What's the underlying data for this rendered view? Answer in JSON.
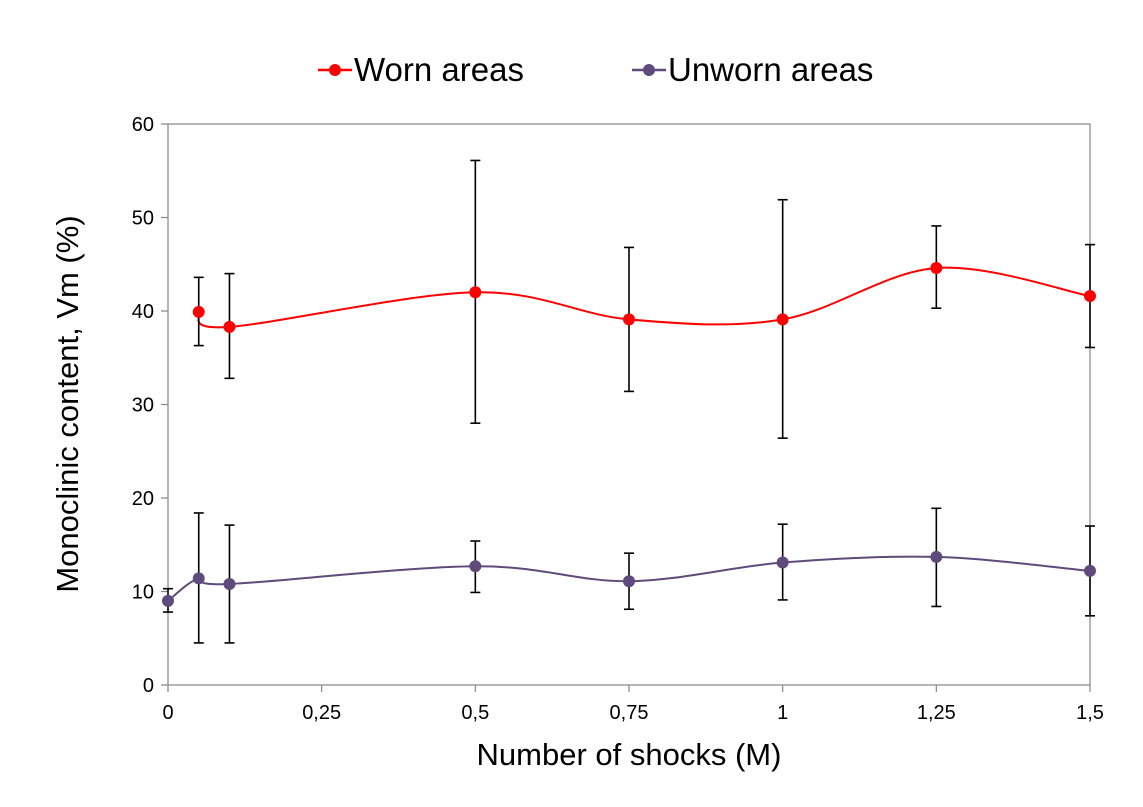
{
  "chart_data": {
    "type": "line",
    "title": "",
    "xlabel": "Number of shocks (M)",
    "ylabel": "Monoclinic content, Vm (%)",
    "xlim": [
      0,
      1.5
    ],
    "ylim": [
      0,
      60
    ],
    "x_ticks": [
      0,
      0.25,
      0.5,
      0.75,
      1,
      1.25,
      1.5
    ],
    "x_tick_labels": [
      "0",
      "0,25",
      "0,5",
      "0,75",
      "1",
      "1,25",
      "1,5"
    ],
    "y_ticks": [
      0,
      10,
      20,
      30,
      40,
      50,
      60
    ],
    "y_tick_labels": [
      "0",
      "10",
      "20",
      "30",
      "40",
      "50",
      "60"
    ],
    "grid": false,
    "legend_position": "top-center",
    "series": [
      {
        "name": "Worn areas",
        "color": "#ff0000",
        "x": [
          0.05,
          0.1,
          0.5,
          0.75,
          1,
          1.25,
          1.5
        ],
        "y": [
          39.9,
          38.3,
          42.0,
          39.1,
          39.1,
          44.6,
          41.6
        ],
        "err_low": [
          36.3,
          32.8,
          28.0,
          31.4,
          26.4,
          40.3,
          36.1
        ],
        "err_high": [
          43.6,
          44.0,
          56.1,
          46.8,
          51.9,
          49.1,
          47.1
        ]
      },
      {
        "name": "Unworn areas",
        "color": "#604a7b",
        "x": [
          0,
          0.05,
          0.1,
          0.5,
          0.75,
          1,
          1.25,
          1.5
        ],
        "y": [
          9.0,
          11.4,
          10.8,
          12.7,
          11.1,
          13.1,
          13.7,
          12.2
        ],
        "err_low": [
          7.8,
          4.5,
          4.5,
          9.9,
          8.1,
          9.1,
          8.4,
          7.4
        ],
        "err_high": [
          10.3,
          18.4,
          17.1,
          15.4,
          14.1,
          17.2,
          18.9,
          17.0
        ]
      }
    ]
  }
}
